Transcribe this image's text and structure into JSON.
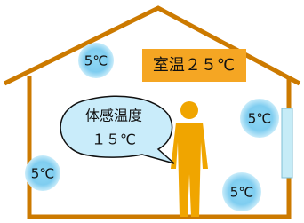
{
  "cold_spots": [
    "5℃",
    "5℃",
    "5℃",
    "5℃"
  ],
  "room_temperature": "室温２５℃",
  "perceived": {
    "title": "体感温度",
    "value": "１５℃"
  }
}
